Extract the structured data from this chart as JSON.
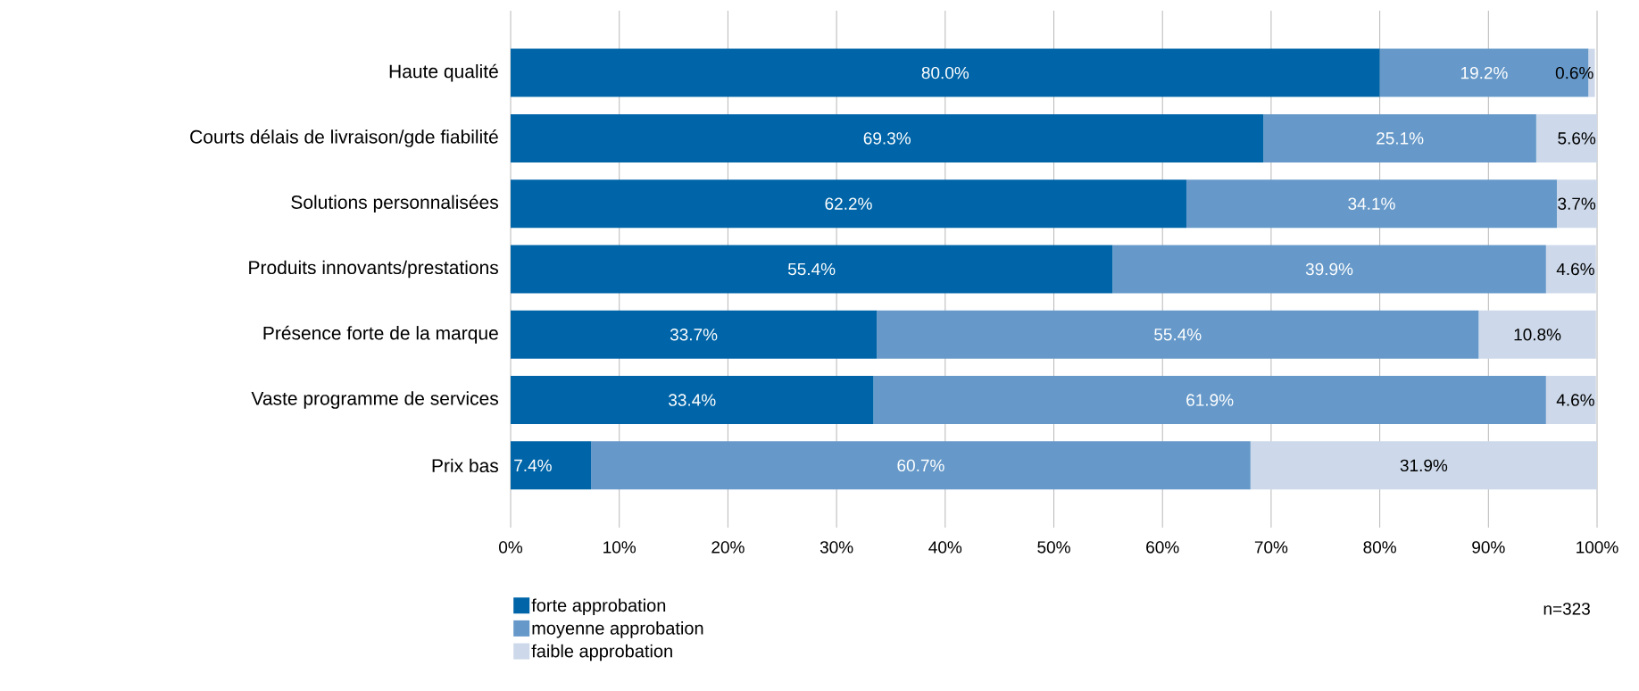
{
  "chart_data": {
    "type": "bar",
    "orientation": "horizontal",
    "stacked": true,
    "categories": [
      "Haute qualité",
      "Courts délais de livraison/gde fiabilité",
      "Solutions personnalisées",
      "Produits innovants/prestations",
      "Présence forte de la marque",
      "Vaste programme de services",
      "Prix bas"
    ],
    "series": [
      {
        "name": "forte approbation",
        "color": "#0065a8",
        "values": [
          80.0,
          69.3,
          62.2,
          55.4,
          33.7,
          33.4,
          7.4
        ],
        "value_labels": [
          "80.0%",
          "69.3%",
          "62.2%",
          "55.4%",
          "33.7%",
          "33.4%",
          "7.4%"
        ]
      },
      {
        "name": "moyenne approbation",
        "color": "#6699c9",
        "values": [
          19.2,
          25.1,
          34.1,
          39.9,
          55.4,
          61.9,
          60.7
        ],
        "value_labels": [
          "19.2%",
          "25.1%",
          "34.1%",
          "39.9%",
          "55.4%",
          "61.9%",
          "60.7%"
        ]
      },
      {
        "name": "faible approbation",
        "color": "#cdd9ea",
        "values": [
          0.6,
          5.6,
          3.7,
          4.6,
          10.8,
          4.6,
          31.9
        ],
        "value_labels": [
          "0.6%",
          "5.6%",
          "3.7%",
          "4.6%",
          "10.8%",
          "4.6%",
          "31.9%"
        ]
      }
    ],
    "xlim": [
      0,
      100
    ],
    "xticks": [
      {
        "value": 0,
        "label": "0%"
      },
      {
        "value": 10,
        "label": "10%"
      },
      {
        "value": 20,
        "label": "20%"
      },
      {
        "value": 30,
        "label": "30%"
      },
      {
        "value": 40,
        "label": "40%"
      },
      {
        "value": 50,
        "label": "50%"
      },
      {
        "value": 60,
        "label": "60%"
      },
      {
        "value": 70,
        "label": "70%"
      },
      {
        "value": 80,
        "label": "80%"
      },
      {
        "value": 90,
        "label": "90%"
      },
      {
        "value": 100,
        "label": "100%"
      }
    ],
    "grid": "x",
    "legend": "bottom left",
    "annotations": [
      "n=323"
    ]
  }
}
